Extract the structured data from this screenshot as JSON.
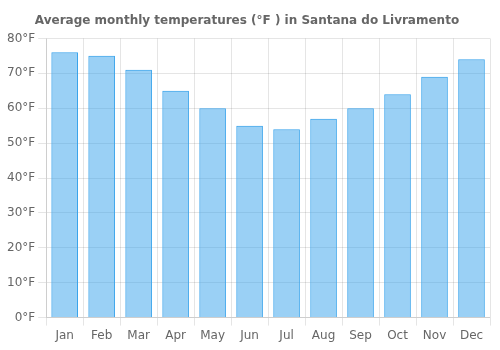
{
  "chart_data": {
    "type": "bar",
    "title": "Average monthly temperatures (°F ) in Santana do Livramento",
    "categories": [
      "Jan",
      "Feb",
      "Mar",
      "Apr",
      "May",
      "Jun",
      "Jul",
      "Aug",
      "Sep",
      "Oct",
      "Nov",
      "Dec"
    ],
    "values": [
      76,
      75,
      71,
      65,
      60,
      55,
      54,
      57,
      60,
      64,
      69,
      74
    ],
    "ylim": [
      0,
      80
    ],
    "yticks": [
      {
        "value": 0,
        "label": "0°F"
      },
      {
        "value": 10,
        "label": "10°F"
      },
      {
        "value": 20,
        "label": "20°F"
      },
      {
        "value": 30,
        "label": "30°F"
      },
      {
        "value": 40,
        "label": "40°F"
      },
      {
        "value": 50,
        "label": "50°F"
      },
      {
        "value": 60,
        "label": "60°F"
      },
      {
        "value": 70,
        "label": "70°F"
      },
      {
        "value": 80,
        "label": "80°F"
      }
    ],
    "grid": true
  }
}
